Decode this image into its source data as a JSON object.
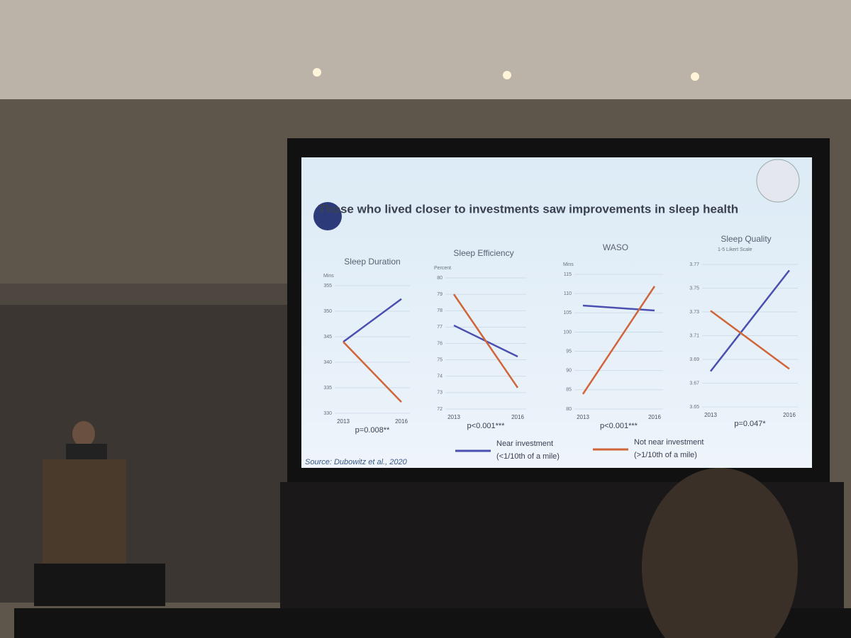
{
  "slide": {
    "title": "Those who lived closer to investments saw improvements in sleep health",
    "source": "Source: Dubowitz et al., 2020"
  },
  "chart_data": [
    {
      "type": "line",
      "title": "Sleep Duration",
      "y_label": "Mins",
      "categories": [
        "2013",
        "2016"
      ],
      "annotation": "p=0.008**",
      "ylim": [
        330,
        355
      ],
      "yticks": [
        330,
        335,
        340,
        345,
        350,
        355
      ],
      "grid": true,
      "series": [
        {
          "name": "Near investment",
          "detail": "(<1/10th of a mile)",
          "color": "#4a4fb0",
          "values": [
            344,
            352.4
          ]
        },
        {
          "name": "Not near investment",
          "detail": "(>1/10th of a mile)",
          "color": "#d0653a",
          "values": [
            344,
            332.2
          ]
        }
      ]
    },
    {
      "type": "line",
      "title": "Sleep Efficiency",
      "y_label": "Percent",
      "categories": [
        "2013",
        "2016"
      ],
      "annotation": "p<0.001***",
      "ylim": [
        72,
        80
      ],
      "yticks": [
        72,
        73,
        74,
        75,
        76,
        77,
        78,
        79,
        80
      ],
      "grid": true,
      "series": [
        {
          "color": "#4a4fb0",
          "values": [
            77.1,
            75.2
          ]
        },
        {
          "color": "#d0653a",
          "values": [
            79.0,
            73.3
          ]
        }
      ]
    },
    {
      "type": "line",
      "title": "WASO",
      "y_label": "Mins",
      "categories": [
        "2013",
        "2016"
      ],
      "annotation": "p<0.001***",
      "ylim": [
        80,
        115
      ],
      "yticks": [
        80,
        85,
        90,
        95,
        100,
        105,
        110,
        115
      ],
      "grid": true,
      "series": [
        {
          "color": "#4a4fb0",
          "values": [
            106.9,
            105.6
          ]
        },
        {
          "color": "#d0653a",
          "values": [
            83.9,
            111.9
          ]
        }
      ]
    },
    {
      "type": "line",
      "title": "Sleep Quality",
      "subtitle": "1-5 Likert Scale",
      "categories": [
        "2013",
        "2016"
      ],
      "annotation": "p=0.047*",
      "ylim": [
        3.65,
        3.77
      ],
      "yticks": [
        3.65,
        3.67,
        3.69,
        3.71,
        3.73,
        3.75,
        3.77
      ],
      "grid": true,
      "series": [
        {
          "color": "#4a4fb0",
          "values": [
            3.68,
            3.765
          ]
        },
        {
          "color": "#d0653a",
          "values": [
            3.731,
            3.682
          ]
        }
      ]
    }
  ]
}
